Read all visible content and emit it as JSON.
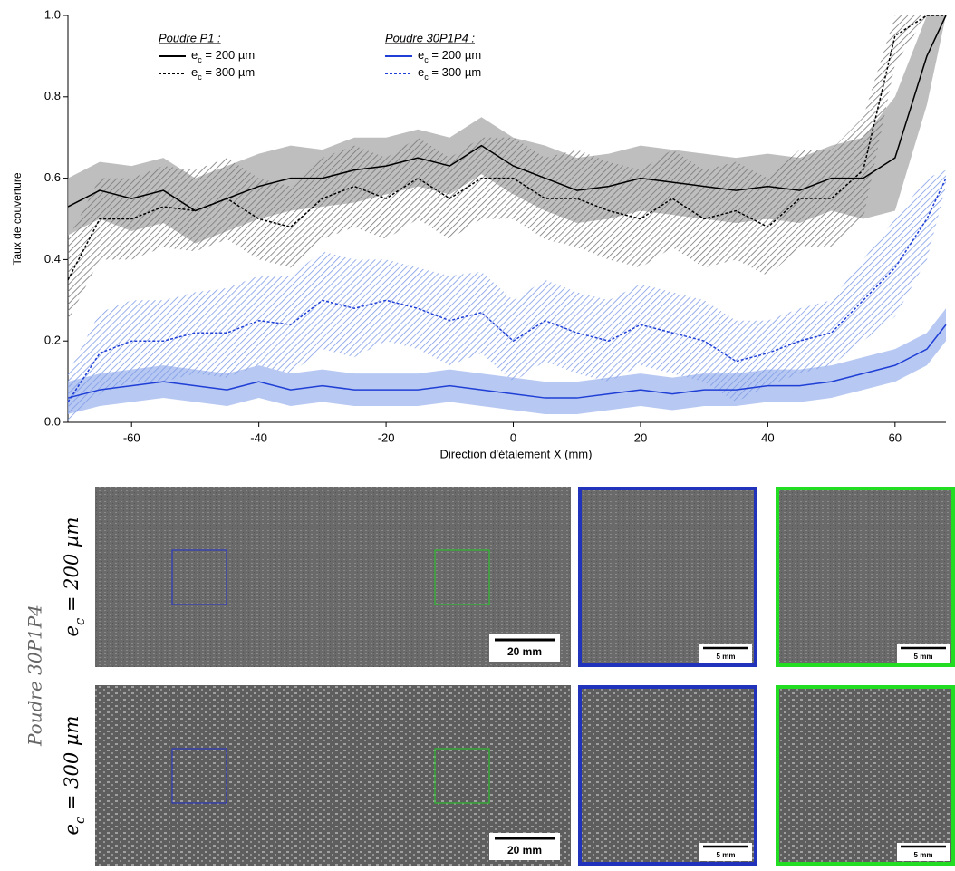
{
  "chart_data": {
    "type": "line",
    "ylabel": "Taux de couverture",
    "xlabel": "Direction d'étalement X (mm)",
    "legend_titles": [
      "Poudre P1 :",
      "Poudre 30P1P4 :"
    ],
    "xlim": [
      -70,
      68
    ],
    "ylim": [
      0,
      1
    ],
    "xticks": [
      -60,
      -40,
      -20,
      0,
      20,
      40,
      60
    ],
    "yticks": [
      {
        "value": 0,
        "label": "0.0"
      },
      {
        "value": 0.2,
        "label": "0.2"
      },
      {
        "value": 0.4,
        "label": "0.4"
      },
      {
        "value": 0.6,
        "label": "0.6"
      },
      {
        "value": 0.8,
        "label": "0.8"
      },
      {
        "value": 1,
        "label": "1.0"
      }
    ],
    "x": [
      -70,
      -65,
      -60,
      -55,
      -50,
      -45,
      -40,
      -35,
      -30,
      -25,
      -20,
      -15,
      -10,
      -5,
      0,
      5,
      10,
      15,
      20,
      25,
      30,
      35,
      40,
      45,
      50,
      55,
      60,
      65,
      68
    ],
    "series": [
      {
        "name": "ec = 200 µm",
        "color": "#000000",
        "band_color": "#a8a8a8",
        "linestyle": "solid",
        "values": [
          0.53,
          0.57,
          0.55,
          0.57,
          0.52,
          0.55,
          0.58,
          0.6,
          0.6,
          0.62,
          0.63,
          0.65,
          0.63,
          0.68,
          0.63,
          0.6,
          0.57,
          0.58,
          0.6,
          0.59,
          0.58,
          0.57,
          0.58,
          0.57,
          0.6,
          0.6,
          0.65,
          0.9,
          1.0
        ],
        "upper": [
          0.6,
          0.64,
          0.63,
          0.65,
          0.6,
          0.63,
          0.66,
          0.68,
          0.67,
          0.7,
          0.7,
          0.72,
          0.7,
          0.75,
          0.7,
          0.68,
          0.65,
          0.66,
          0.68,
          0.67,
          0.66,
          0.65,
          0.66,
          0.65,
          0.68,
          0.7,
          0.8,
          1.0,
          1.0
        ],
        "lower": [
          0.46,
          0.5,
          0.47,
          0.49,
          0.44,
          0.47,
          0.5,
          0.52,
          0.53,
          0.54,
          0.56,
          0.58,
          0.56,
          0.61,
          0.56,
          0.52,
          0.49,
          0.5,
          0.52,
          0.51,
          0.5,
          0.49,
          0.5,
          0.49,
          0.52,
          0.5,
          0.52,
          0.78,
          1.0
        ]
      },
      {
        "name": "ec = 300 µm",
        "color": "#000000",
        "band_color": "#888888",
        "linestyle": "dotted",
        "values": [
          0.35,
          0.5,
          0.5,
          0.53,
          0.52,
          0.55,
          0.5,
          0.48,
          0.55,
          0.58,
          0.55,
          0.6,
          0.55,
          0.6,
          0.6,
          0.55,
          0.55,
          0.52,
          0.5,
          0.55,
          0.5,
          0.52,
          0.48,
          0.55,
          0.55,
          0.62,
          0.95,
          1.0,
          1.0
        ],
        "upper": [
          0.45,
          0.6,
          0.6,
          0.63,
          0.62,
          0.65,
          0.6,
          0.58,
          0.65,
          0.68,
          0.65,
          0.7,
          0.65,
          0.7,
          0.7,
          0.65,
          0.67,
          0.64,
          0.62,
          0.67,
          0.62,
          0.64,
          0.6,
          0.67,
          0.67,
          0.75,
          1.0,
          1.0,
          1.0
        ],
        "lower": [
          0.25,
          0.4,
          0.4,
          0.43,
          0.42,
          0.45,
          0.4,
          0.38,
          0.45,
          0.48,
          0.45,
          0.5,
          0.45,
          0.5,
          0.5,
          0.45,
          0.43,
          0.4,
          0.38,
          0.43,
          0.38,
          0.4,
          0.36,
          0.43,
          0.43,
          0.5,
          0.88,
          1.0,
          1.0
        ]
      },
      {
        "name": "ec = 200 µm",
        "color": "#1f3fd6",
        "band_color": "#9fb5ee",
        "linestyle": "solid",
        "values": [
          0.06,
          0.08,
          0.09,
          0.1,
          0.09,
          0.08,
          0.1,
          0.08,
          0.09,
          0.08,
          0.08,
          0.08,
          0.09,
          0.08,
          0.07,
          0.06,
          0.06,
          0.07,
          0.08,
          0.07,
          0.08,
          0.08,
          0.09,
          0.09,
          0.1,
          0.12,
          0.14,
          0.18,
          0.24
        ],
        "upper": [
          0.1,
          0.12,
          0.13,
          0.14,
          0.13,
          0.12,
          0.14,
          0.12,
          0.13,
          0.12,
          0.12,
          0.12,
          0.13,
          0.12,
          0.11,
          0.1,
          0.1,
          0.11,
          0.12,
          0.11,
          0.12,
          0.12,
          0.13,
          0.13,
          0.14,
          0.16,
          0.18,
          0.22,
          0.28
        ],
        "lower": [
          0.02,
          0.04,
          0.05,
          0.06,
          0.05,
          0.04,
          0.06,
          0.04,
          0.05,
          0.04,
          0.04,
          0.04,
          0.05,
          0.04,
          0.03,
          0.02,
          0.02,
          0.03,
          0.04,
          0.03,
          0.04,
          0.04,
          0.05,
          0.05,
          0.06,
          0.08,
          0.1,
          0.14,
          0.2
        ]
      },
      {
        "name": "ec = 300 µm",
        "color": "#1f3fd6",
        "band_color": "#7f9ce6",
        "linestyle": "dotted",
        "values": [
          0.05,
          0.17,
          0.2,
          0.2,
          0.22,
          0.22,
          0.25,
          0.24,
          0.3,
          0.28,
          0.3,
          0.28,
          0.25,
          0.27,
          0.2,
          0.25,
          0.22,
          0.2,
          0.24,
          0.22,
          0.2,
          0.15,
          0.17,
          0.2,
          0.22,
          0.3,
          0.38,
          0.5,
          0.6
        ],
        "upper": [
          0.12,
          0.27,
          0.3,
          0.3,
          0.32,
          0.33,
          0.36,
          0.36,
          0.42,
          0.4,
          0.4,
          0.38,
          0.36,
          0.37,
          0.3,
          0.35,
          0.32,
          0.3,
          0.34,
          0.32,
          0.3,
          0.25,
          0.25,
          0.28,
          0.3,
          0.4,
          0.5,
          0.6,
          0.62
        ],
        "lower": [
          0.0,
          0.07,
          0.1,
          0.1,
          0.12,
          0.11,
          0.14,
          0.12,
          0.18,
          0.16,
          0.2,
          0.18,
          0.14,
          0.17,
          0.1,
          0.15,
          0.12,
          0.1,
          0.14,
          0.12,
          0.1,
          0.05,
          0.09,
          0.12,
          0.14,
          0.2,
          0.26,
          0.4,
          0.58
        ]
      }
    ]
  },
  "images": {
    "group_label": "Poudre 30P1P4",
    "rows": [
      {
        "label": "ec = 200 µm",
        "scale_main": "20 mm",
        "scale_zoom": [
          "5 mm",
          "5 mm"
        ]
      },
      {
        "label": "ec = 300 µm",
        "scale_main": "20 mm",
        "scale_zoom": [
          "5 mm",
          "5 mm"
        ]
      }
    ]
  }
}
